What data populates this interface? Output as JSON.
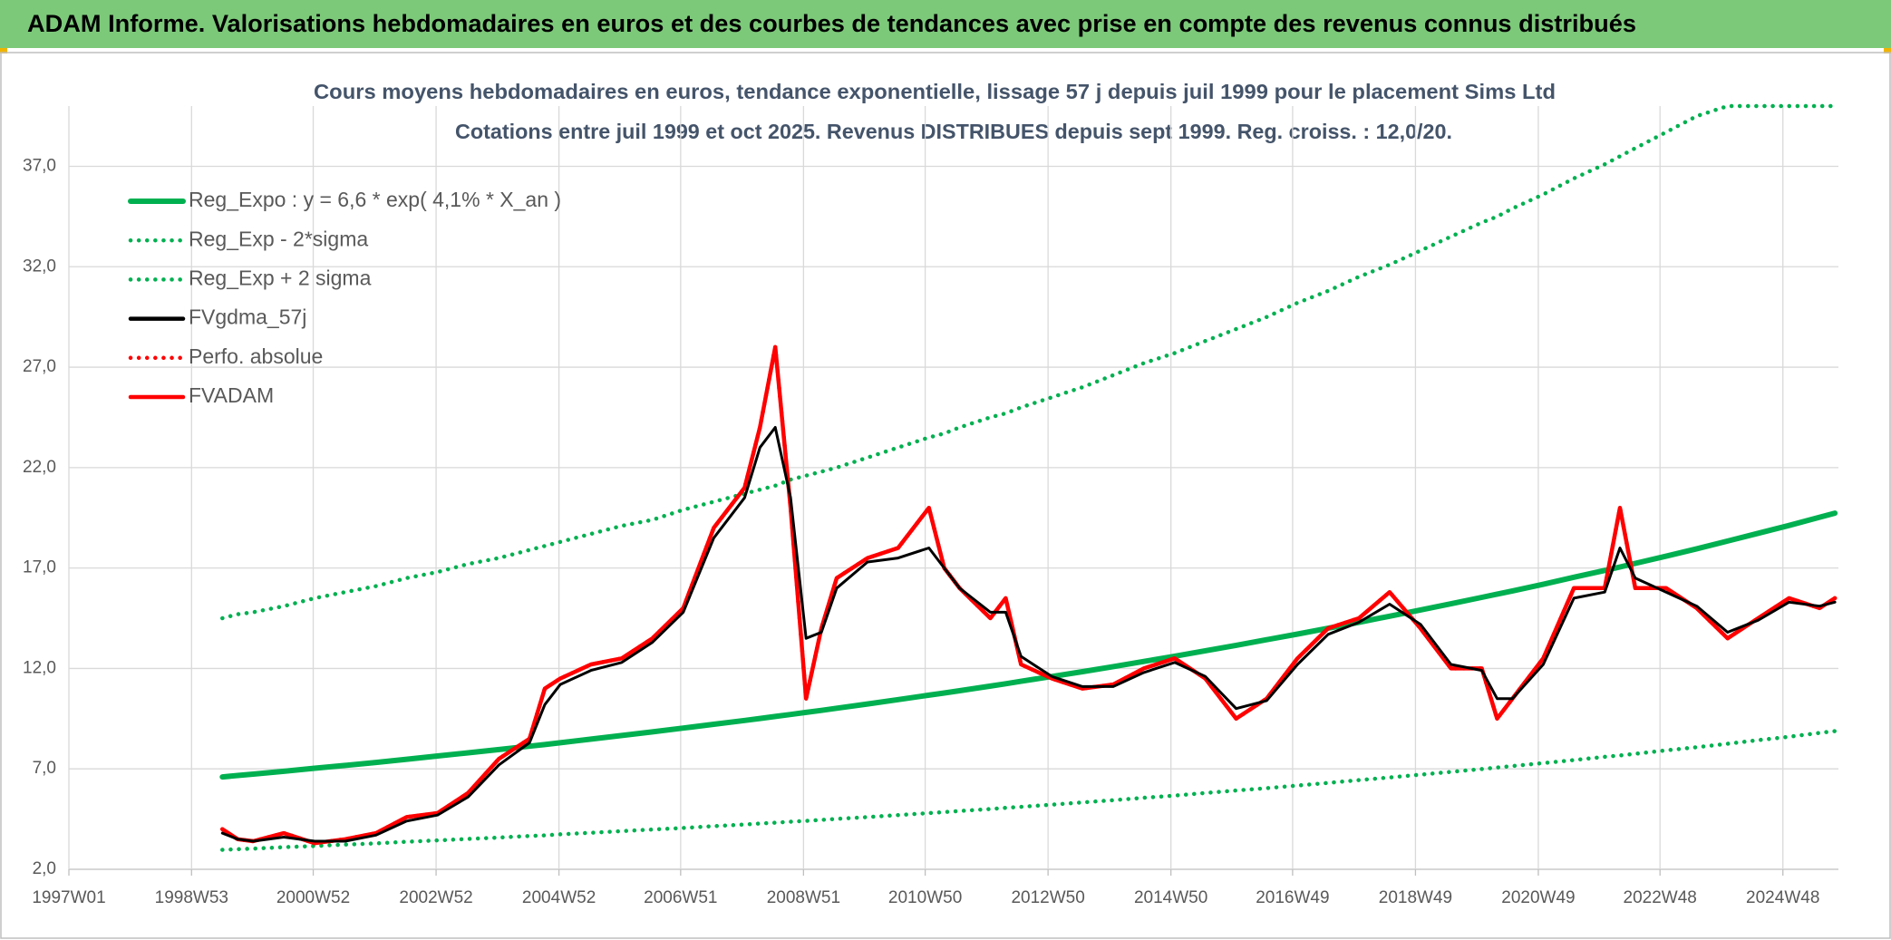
{
  "header": {
    "title": "ADAM Informe. Valorisations hebdomadaires en euros et des courbes de tendances avec prise en compte des revenus connus distribués"
  },
  "chart_data": {
    "type": "line",
    "title": "Cours moyens hebdomadaires en euros, tendance exponentielle, lissage 57 j depuis juil 1999 pour le placement Sims Ltd",
    "subtitle": "Cotations entre juil 1999 et oct 2025. Revenus DISTRIBUES depuis sept 1999. Reg. croiss. : 12,0/20.",
    "x": [
      "1999W27",
      "1999W40",
      "2000W01",
      "2000W27",
      "2001W01",
      "2001W27",
      "2002W01",
      "2002W27",
      "2003W01",
      "2003W27",
      "2004W01",
      "2004W27",
      "2004W40",
      "2005W01",
      "2005W27",
      "2006W01",
      "2006W27",
      "2007W01",
      "2007W27",
      "2008W01",
      "2008W14",
      "2008W27",
      "2008W40",
      "2009W01",
      "2009W14",
      "2009W27",
      "2010W01",
      "2010W27",
      "2011W01",
      "2011W14",
      "2011W27",
      "2012W01",
      "2012W14",
      "2012W27",
      "2013W01",
      "2013W27",
      "2014W01",
      "2014W27",
      "2015W01",
      "2015W27",
      "2016W01",
      "2016W27",
      "2017W01",
      "2017W27",
      "2018W01",
      "2018W27",
      "2019W01",
      "2019W27",
      "2020W01",
      "2020W14",
      "2020W27",
      "2021W01",
      "2021W27",
      "2022W01",
      "2022W14",
      "2022W27",
      "2023W01",
      "2023W27",
      "2024W01",
      "2024W27",
      "2025W01",
      "2025W27",
      "2025W40"
    ],
    "series": [
      {
        "name": "Reg_Expo : y = 6,6 * exp( 4,1% *  X_an )",
        "color": "#00b050",
        "style": "solid",
        "values": [
          6.6,
          6.67,
          6.74,
          6.88,
          7.03,
          7.17,
          7.32,
          7.48,
          7.64,
          7.8,
          7.96,
          8.13,
          8.21,
          8.3,
          8.48,
          8.66,
          8.84,
          9.03,
          9.22,
          9.41,
          9.51,
          9.61,
          9.71,
          9.81,
          9.91,
          10.02,
          10.23,
          10.45,
          10.67,
          10.78,
          10.89,
          11.12,
          11.24,
          11.36,
          11.6,
          11.84,
          12.09,
          12.35,
          12.61,
          12.88,
          13.15,
          13.43,
          13.71,
          14.0,
          14.3,
          14.6,
          14.91,
          15.22,
          15.54,
          15.7,
          15.86,
          16.19,
          16.54,
          16.88,
          17.05,
          17.23,
          17.59,
          17.96,
          18.34,
          18.73,
          19.12,
          19.53,
          19.73
        ]
      },
      {
        "name": "Reg_Exp - 2*sigma",
        "color": "#00b050",
        "style": "dotted",
        "values": [
          2.97,
          3.0,
          3.03,
          3.1,
          3.16,
          3.23,
          3.29,
          3.37,
          3.44,
          3.51,
          3.58,
          3.66,
          3.69,
          3.74,
          3.82,
          3.9,
          3.98,
          4.06,
          4.15,
          4.23,
          4.28,
          4.32,
          4.37,
          4.41,
          4.46,
          4.51,
          4.6,
          4.7,
          4.8,
          4.85,
          4.9,
          5.0,
          5.06,
          5.11,
          5.22,
          5.33,
          5.44,
          5.56,
          5.67,
          5.8,
          5.92,
          6.04,
          6.17,
          6.3,
          6.44,
          6.57,
          6.71,
          6.85,
          6.99,
          7.07,
          7.14,
          7.29,
          7.44,
          7.6,
          7.67,
          7.75,
          7.92,
          8.08,
          8.25,
          8.43,
          8.6,
          8.79,
          8.88
        ]
      },
      {
        "name": "Reg_Exp + 2 sigma",
        "color": "#00b050",
        "style": "dotted",
        "values": [
          14.5,
          14.7,
          14.8,
          15.1,
          15.5,
          15.8,
          16.1,
          16.5,
          16.8,
          17.2,
          17.5,
          17.9,
          18.1,
          18.3,
          18.7,
          19.1,
          19.4,
          19.9,
          20.3,
          20.7,
          20.9,
          21.1,
          21.4,
          21.6,
          21.8,
          22.0,
          22.5,
          23.0,
          23.5,
          23.7,
          24.0,
          24.5,
          24.7,
          25.0,
          25.5,
          26.0,
          26.6,
          27.2,
          27.7,
          28.3,
          28.9,
          29.5,
          30.2,
          30.8,
          31.5,
          32.1,
          32.8,
          33.5,
          34.2,
          34.5,
          34.9,
          35.6,
          36.4,
          37.1,
          37.5,
          37.9,
          38.7,
          39.5,
          40,
          40,
          40,
          40,
          40
        ]
      },
      {
        "name": "FVgdma_57j",
        "color": "#000000",
        "style": "solid",
        "values": [
          3.8,
          3.5,
          3.4,
          3.6,
          3.4,
          3.4,
          3.7,
          4.4,
          4.7,
          5.6,
          7.2,
          8.3,
          10.2,
          11.2,
          11.9,
          12.3,
          13.3,
          14.8,
          18.5,
          20.5,
          23.0,
          24.0,
          20.5,
          13.5,
          13.8,
          16.0,
          17.3,
          17.5,
          18.0,
          17.0,
          16.0,
          14.8,
          14.8,
          12.6,
          11.6,
          11.1,
          11.1,
          11.8,
          12.3,
          11.6,
          10.0,
          10.4,
          12.2,
          13.7,
          14.3,
          15.2,
          14.2,
          12.2,
          11.9,
          10.5,
          10.5,
          12.2,
          15.5,
          15.8,
          18.0,
          16.5,
          15.8,
          15.1,
          13.8,
          14.4,
          15.3,
          15.1,
          15.3
        ]
      },
      {
        "name": "Perfo. absolue",
        "color": "#ff0000",
        "style": "dotted",
        "values": [
          4.0,
          3.5,
          3.4,
          3.8,
          3.3,
          3.5,
          3.8,
          4.6,
          4.8,
          5.8,
          7.5,
          8.5,
          11.0,
          11.5,
          12.2,
          12.5,
          13.5,
          15.0,
          19.0,
          21.0,
          24.0,
          28.0,
          20.0,
          10.5,
          14.0,
          16.5,
          17.5,
          18.0,
          20.0,
          17.0,
          16.0,
          14.5,
          15.5,
          12.2,
          11.5,
          11.0,
          11.2,
          12.0,
          12.5,
          11.5,
          9.5,
          10.5,
          12.5,
          14.0,
          14.5,
          15.8,
          14.0,
          12.0,
          12.0,
          9.5,
          10.5,
          12.5,
          16.0,
          16.0,
          20.0,
          16.0,
          16.0,
          15.0,
          13.5,
          14.5,
          15.5,
          15.0,
          15.5
        ]
      },
      {
        "name": "FVADAM",
        "color": "#ff0000",
        "style": "solid",
        "values": [
          4.0,
          3.5,
          3.4,
          3.8,
          3.3,
          3.5,
          3.8,
          4.6,
          4.8,
          5.8,
          7.5,
          8.5,
          11.0,
          11.5,
          12.2,
          12.5,
          13.5,
          15.0,
          19.0,
          21.0,
          24.0,
          28.0,
          20.0,
          10.5,
          14.0,
          16.5,
          17.5,
          18.0,
          20.0,
          17.0,
          16.0,
          14.5,
          15.5,
          12.2,
          11.5,
          11.0,
          11.2,
          12.0,
          12.5,
          11.5,
          9.5,
          10.5,
          12.5,
          14.0,
          14.5,
          15.8,
          14.0,
          12.0,
          12.0,
          9.5,
          10.5,
          12.5,
          16.0,
          16.0,
          20.0,
          16.0,
          16.0,
          15.0,
          13.5,
          14.5,
          15.5,
          15.0,
          15.5
        ]
      }
    ],
    "xlim": [
      "1997W01",
      "2025W43"
    ],
    "xticks": [
      "1997W01",
      "1998W53",
      "2000W52",
      "2002W52",
      "2004W52",
      "2006W51",
      "2008W51",
      "2010W50",
      "2012W50",
      "2014W50",
      "2016W49",
      "2018W49",
      "2020W49",
      "2022W48",
      "2024W48"
    ],
    "ylim": [
      2,
      40
    ],
    "yticks": [
      {
        "value": 2,
        "label": "2,0"
      },
      {
        "value": 7,
        "label": "7,0"
      },
      {
        "value": 12,
        "label": "12,0"
      },
      {
        "value": 17,
        "label": "17,0"
      },
      {
        "value": 22,
        "label": "22,0"
      },
      {
        "value": 27,
        "label": "27,0"
      },
      {
        "value": 32,
        "label": "32,0"
      },
      {
        "value": 37,
        "label": "37,0"
      }
    ],
    "grid": true,
    "legend": "upper-left"
  }
}
